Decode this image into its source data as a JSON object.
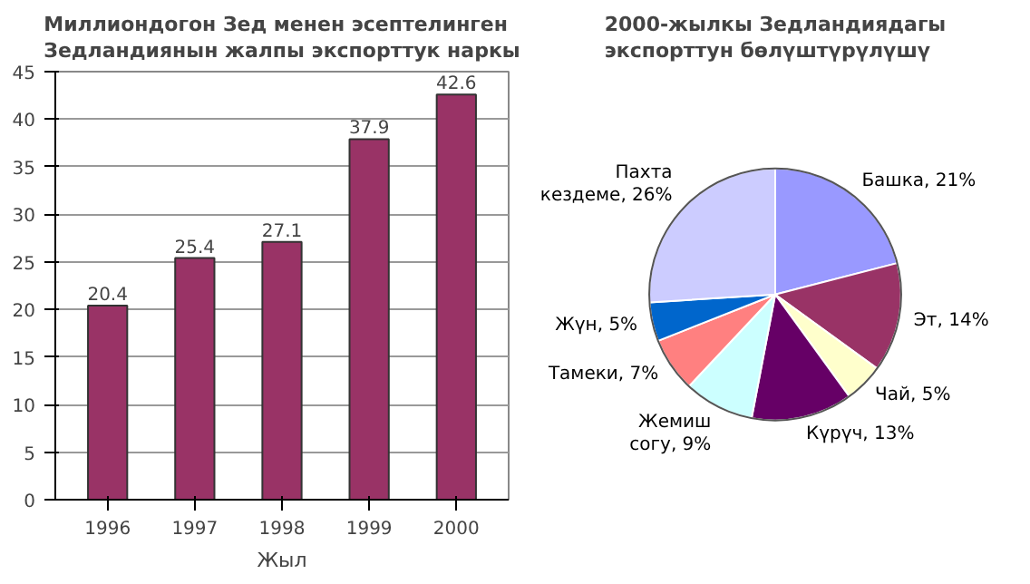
{
  "chart_data": [
    {
      "type": "bar",
      "title": "Миллиондогон Зед менен эсептелинген Зедландиянын жалпы экспорттук наркы",
      "xlabel": "Жыл",
      "categories": [
        "1996",
        "1997",
        "1998",
        "1999",
        "2000"
      ],
      "values": [
        20.4,
        25.4,
        27.1,
        37.9,
        42.6
      ],
      "color": "#993366",
      "ylim": [
        0,
        45
      ],
      "yticks": [
        0,
        5,
        10,
        15,
        20,
        25,
        30,
        35,
        40,
        45
      ],
      "grid": "y",
      "data_labels": true
    },
    {
      "type": "pie",
      "title": "2000-жылкы Зедландиядагы экспорттун бөлүштүрүлүшү",
      "categories": [
        "Башка",
        "Эт",
        "Чай",
        "Күрүч",
        "Жемиш согу",
        "Тамеки",
        "Жүн",
        "Пахта кездеме"
      ],
      "values": [
        21,
        14,
        5,
        13,
        9,
        7,
        5,
        26
      ],
      "value_labels": [
        "21%",
        "14%",
        "5%",
        "13%",
        "9%",
        "7%",
        "5%",
        "26%"
      ],
      "colors": [
        "#9999ff",
        "#993366",
        "#ffffcc",
        "#660066",
        "#ccffff",
        "#ff8080",
        "#0066cc",
        "#ccccff"
      ]
    }
  ]
}
